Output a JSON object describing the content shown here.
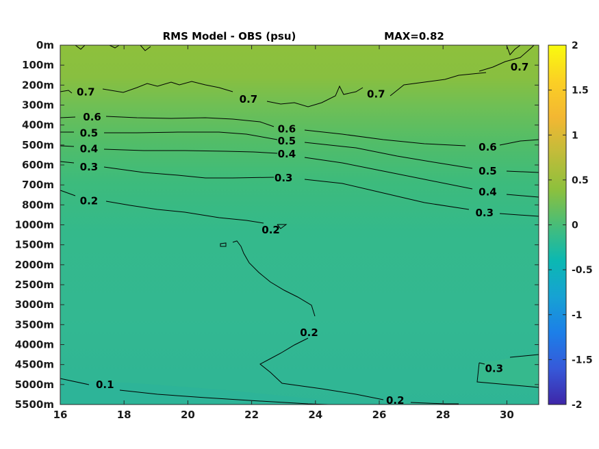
{
  "chart_data": {
    "type": "heatmap",
    "title": "RMS Model - OBS (psu)",
    "max_label": "MAX=0.82",
    "x_ticks": [
      "16",
      "18",
      "20",
      "22",
      "24",
      "26",
      "28",
      "30"
    ],
    "x_values": [
      16,
      18,
      20,
      22,
      24,
      26,
      28,
      30
    ],
    "xlim": [
      16,
      31
    ],
    "y_ticks": [
      "0m",
      "100m",
      "200m",
      "300m",
      "400m",
      "500m",
      "600m",
      "700m",
      "800m",
      "1000m",
      "1500m",
      "2000m",
      "2500m",
      "3000m",
      "3500m",
      "4000m",
      "4500m",
      "5000m",
      "5500m"
    ],
    "colorbar": {
      "range": [
        -2,
        2
      ],
      "ticks": [
        "2",
        "1.5",
        "1",
        "0.5",
        "0",
        "-0.5",
        "-1",
        "-1.5",
        "-2"
      ],
      "tick_values": [
        2,
        1.5,
        1,
        0.5,
        0,
        -0.5,
        -1,
        -1.5,
        -2
      ],
      "colormap": "parula"
    },
    "contour_labels": [
      {
        "text": "0.7",
        "x": 16.8,
        "y": 2.35
      },
      {
        "text": "0.7",
        "x": 21.9,
        "y": 2.7
      },
      {
        "text": "0.7",
        "x": 25.9,
        "y": 2.45
      },
      {
        "text": "0.7",
        "x": 30.4,
        "y": 1.1
      },
      {
        "text": "0.6",
        "x": 17.0,
        "y": 3.6
      },
      {
        "text": "0.6",
        "x": 23.1,
        "y": 4.2
      },
      {
        "text": "0.6",
        "x": 29.4,
        "y": 5.1
      },
      {
        "text": "0.5",
        "x": 16.9,
        "y": 4.4
      },
      {
        "text": "0.5",
        "x": 23.1,
        "y": 4.8
      },
      {
        "text": "0.5",
        "x": 29.4,
        "y": 6.3
      },
      {
        "text": "0.4",
        "x": 16.9,
        "y": 5.2
      },
      {
        "text": "0.4",
        "x": 23.1,
        "y": 5.45
      },
      {
        "text": "0.4",
        "x": 29.4,
        "y": 7.35
      },
      {
        "text": "0.3",
        "x": 16.9,
        "y": 6.1
      },
      {
        "text": "0.3",
        "x": 23.0,
        "y": 6.65
      },
      {
        "text": "0.3",
        "x": 29.3,
        "y": 8.4
      },
      {
        "text": "0.3",
        "x": 29.6,
        "y": 16.2
      },
      {
        "text": "0.2",
        "x": 16.9,
        "y": 7.8
      },
      {
        "text": "0.2",
        "x": 22.6,
        "y": 9.25
      },
      {
        "text": "0.2",
        "x": 23.8,
        "y": 14.4
      },
      {
        "text": "0.2",
        "x": 26.5,
        "y": 17.8
      },
      {
        "text": "0.1",
        "x": 17.4,
        "y": 17.0
      }
    ]
  }
}
